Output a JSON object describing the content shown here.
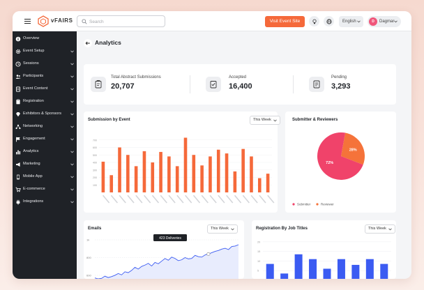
{
  "app": {
    "name": "vFAIRS"
  },
  "topbar": {
    "search_placeholder": "Search",
    "visit_button": "Visit Event Site",
    "language": "English",
    "user": {
      "initial": "D",
      "name": "Dagmar"
    },
    "icons": [
      "menu-icon",
      "search-icon",
      "lightbulb-icon",
      "globe-icon"
    ]
  },
  "sidebar": {
    "items": [
      {
        "label": "Overview",
        "icon": "info-icon",
        "expandable": false
      },
      {
        "label": "Event Setup",
        "icon": "gear-icon",
        "expandable": true
      },
      {
        "label": "Sessions",
        "icon": "clock-icon",
        "expandable": true
      },
      {
        "label": "Participants",
        "icon": "users-icon",
        "expandable": true
      },
      {
        "label": "Event Content",
        "icon": "document-icon",
        "expandable": true
      },
      {
        "label": "Registration",
        "icon": "clipboard-icon",
        "expandable": true
      },
      {
        "label": "Exhibitors & Sponsors",
        "icon": "gem-icon",
        "expandable": true
      },
      {
        "label": "Networking",
        "icon": "network-icon",
        "expandable": true
      },
      {
        "label": "Engagement",
        "icon": "flag-icon",
        "expandable": true
      },
      {
        "label": "Analytics",
        "icon": "bar-chart-icon",
        "expandable": true
      },
      {
        "label": "Marketing",
        "icon": "megaphone-icon",
        "expandable": true
      },
      {
        "label": "Mobile App",
        "icon": "mobile-icon",
        "expandable": true
      },
      {
        "label": "E-commerce",
        "icon": "cart-icon",
        "expandable": true
      },
      {
        "label": "Integrations",
        "icon": "plug-icon",
        "expandable": true
      }
    ]
  },
  "page": {
    "title": "Analytics"
  },
  "stats": [
    {
      "label": "Total Abstract Submissions",
      "value": "20,707"
    },
    {
      "label": "Accepted",
      "value": "16,400"
    },
    {
      "label": "Pending",
      "value": "3,293"
    }
  ],
  "colors": {
    "accent": "#f5693a",
    "pink": "#f0436a",
    "blue": "#3b5bf2",
    "sidebar": "#1f2227"
  },
  "submission_card": {
    "title": "Submission by Event",
    "filter": "This Week"
  },
  "pie_card": {
    "title": "Submitter & Reviewers"
  },
  "emails_card": {
    "title": "Emails",
    "filter": "This Week",
    "tooltip": "423 Deliveries"
  },
  "jobs_card": {
    "title": "Registration By Job Titles",
    "filter": "This Week"
  },
  "chart_data": [
    {
      "type": "bar",
      "title": "Submission by Event",
      "categories": [
        "",
        "",
        "",
        "",
        "",
        "",
        "",
        "",
        "",
        "",
        "",
        "",
        "",
        "",
        "",
        "",
        "",
        "",
        "",
        "",
        ""
      ],
      "values": [
        410,
        230,
        600,
        500,
        350,
        550,
        400,
        540,
        480,
        350,
        730,
        500,
        360,
        480,
        570,
        520,
        280,
        580,
        480,
        190,
        250
      ],
      "ylim": [
        0,
        800
      ],
      "ytick_labels": [
        "100",
        "200",
        "300",
        "400",
        "500",
        "600",
        "700"
      ],
      "grid": true
    },
    {
      "type": "pie",
      "title": "Submitter & Reviewers",
      "labels": [
        "Submitter",
        "Reviewer"
      ],
      "values": [
        72,
        28
      ],
      "slice_labels": [
        "72%",
        "28%"
      ],
      "colors": [
        "#f0436a",
        "#f5733a"
      ],
      "legend": "bottom"
    },
    {
      "type": "line",
      "title": "Emails",
      "yticks": [
        "1k",
        "800",
        "600"
      ],
      "values": [
        570,
        560,
        565,
        590,
        575,
        585,
        600,
        620,
        605,
        640,
        630,
        655,
        690,
        670,
        700,
        715,
        735,
        705,
        745,
        730,
        760,
        790,
        770,
        805,
        790,
        765,
        775,
        800,
        785,
        790,
        825,
        810,
        805,
        830,
        840,
        855,
        870,
        880,
        895,
        905,
        890,
        925,
        930,
        945
      ],
      "ylim": [
        560,
        1000
      ],
      "area": true
    },
    {
      "type": "bar",
      "title": "Registration By Job Titles",
      "yticks": [
        "20",
        "15",
        "10",
        "5"
      ],
      "values": [
        8.5,
        3.5,
        13.5,
        11.0,
        6.0,
        11.0,
        8.0,
        11.0,
        8.5
      ],
      "ylim": [
        0,
        22.5
      ]
    }
  ]
}
